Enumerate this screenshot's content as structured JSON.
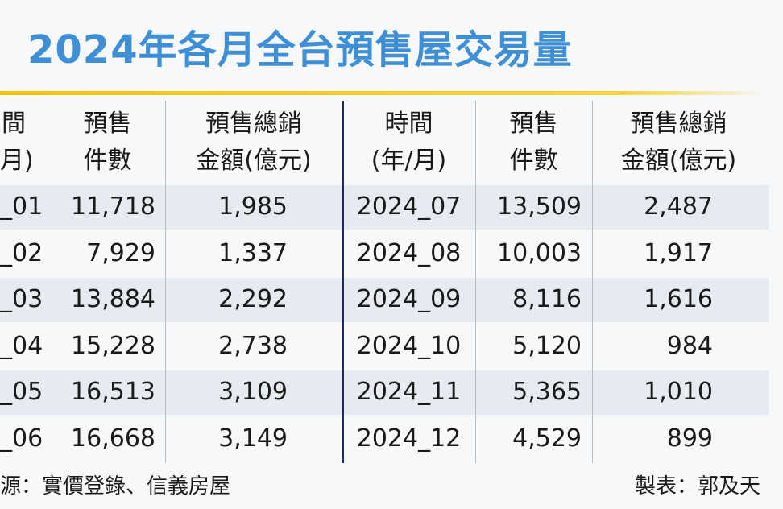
{
  "title": "2024年各月全台預售屋交易量",
  "table": {
    "header": [
      [
        "間",
        "月)"
      ],
      [
        "預售",
        "件數"
      ],
      [
        "預售總銷",
        "金額(億元)"
      ],
      [
        "時間",
        "(年/月)"
      ],
      [
        "預售",
        "件數"
      ],
      [
        "預售總銷",
        "金額(億元)"
      ]
    ],
    "rows": [
      [
        "_01",
        "11,718",
        "1,985",
        "2024_07",
        "13,509",
        "2,487"
      ],
      [
        "_02",
        "7,929",
        "1,337",
        "2024_08",
        "10,003",
        "1,917"
      ],
      [
        "_03",
        "13,884",
        "2,292",
        "2024_09",
        "8,116",
        "1,616"
      ],
      [
        "_04",
        "15,228",
        "2,738",
        "2024_10",
        "5,120",
        "984"
      ],
      [
        "_05",
        "16,513",
        "3,109",
        "2024_11",
        "5,365",
        "1,010"
      ],
      [
        "_06",
        "16,668",
        "3,149",
        "2024_12",
        "4,529",
        "899"
      ]
    ]
  },
  "footer": {
    "source": "源：實價登錄、信義房屋",
    "credit": "製表：郭及天"
  }
}
